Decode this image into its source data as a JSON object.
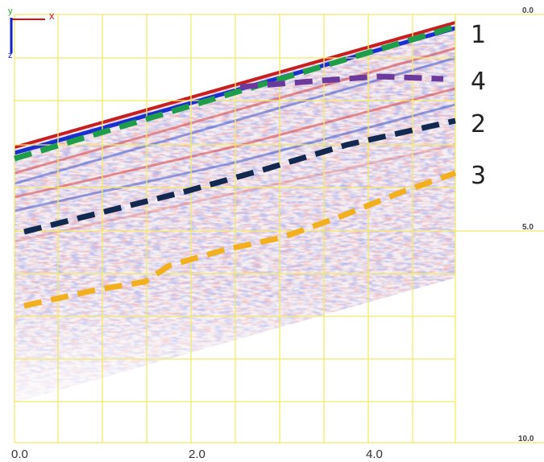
{
  "axis_icon": {
    "x": "x",
    "y": "y",
    "z": "z"
  },
  "x_axis": {
    "ticks": [
      "0.0",
      "2.0",
      "4.0"
    ]
  },
  "y_axis": {
    "ticks": [
      "0.0",
      "5.0",
      "10.0"
    ]
  },
  "layers": [
    {
      "label": "1"
    },
    {
      "label": "4"
    },
    {
      "label": "2"
    },
    {
      "label": "3"
    }
  ]
}
